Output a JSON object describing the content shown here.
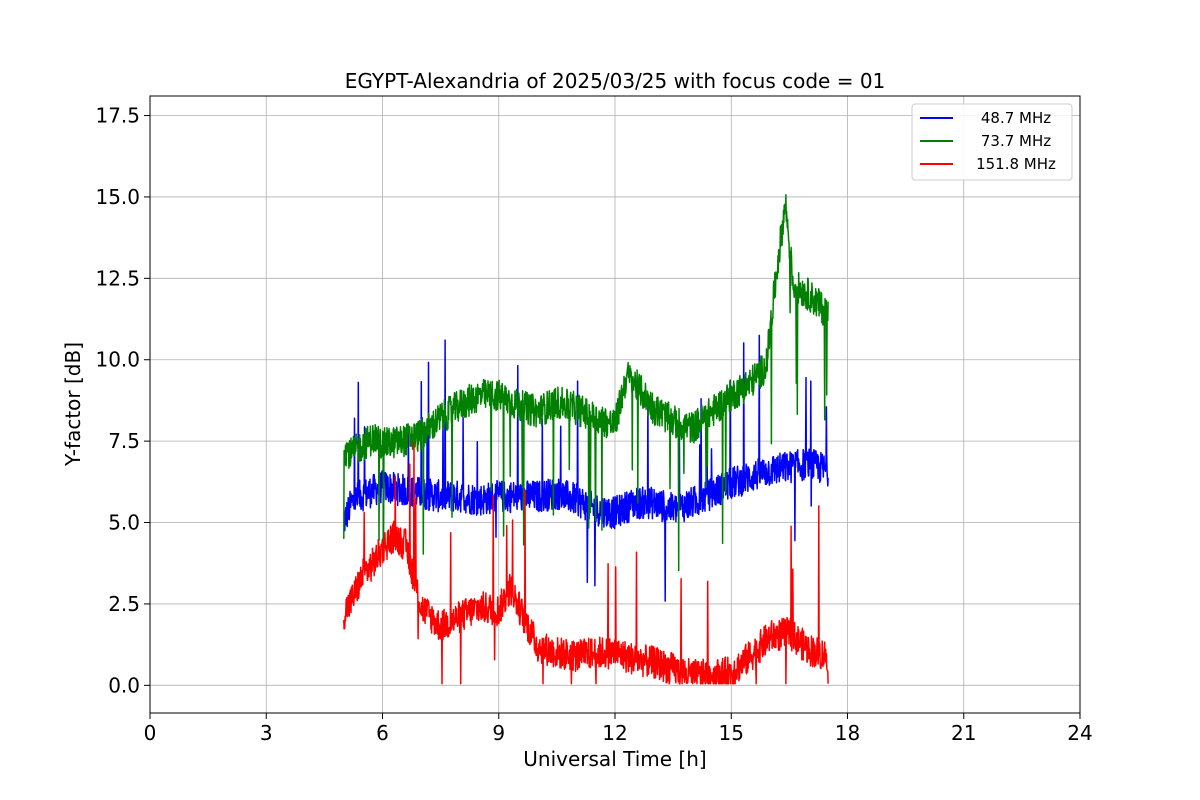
{
  "chart_data": {
    "type": "line",
    "title": "EGYPT-Alexandria of 2025/03/25 with focus code = 01",
    "xlabel": "Universal Time [h]",
    "ylabel": "Y-factor [dB]",
    "xlim": [
      0,
      24
    ],
    "ylim": [
      -0.85,
      18.1
    ],
    "xticks": [
      0,
      3,
      6,
      9,
      12,
      15,
      18,
      21,
      24
    ],
    "xtick_labels": [
      "0",
      "3",
      "6",
      "9",
      "12",
      "15",
      "18",
      "21",
      "24"
    ],
    "yticks": [
      0.0,
      2.5,
      5.0,
      7.5,
      10.0,
      12.5,
      15.0,
      17.5
    ],
    "ytick_labels": [
      "0.0",
      "2.5",
      "5.0",
      "7.5",
      "10.0",
      "12.5",
      "15.0",
      "17.5"
    ],
    "grid": true,
    "legend_position": "top-right",
    "series": [
      {
        "name": " 48.7 MHz",
        "color": "#0000ff",
        "x": [
          5.0,
          5.1,
          5.2,
          5.4,
          5.6,
          5.8,
          6.0,
          6.5,
          7.0,
          7.5,
          8.0,
          8.5,
          9.0,
          9.5,
          10.0,
          10.5,
          11.0,
          11.5,
          12.0,
          12.5,
          13.0,
          13.5,
          14.0,
          14.5,
          15.0,
          15.5,
          16.0,
          16.5,
          17.0,
          17.5
        ],
        "y": [
          5.0,
          5.3,
          5.6,
          5.8,
          5.9,
          6.0,
          6.1,
          6.0,
          5.9,
          5.8,
          5.8,
          5.7,
          5.8,
          5.8,
          5.8,
          5.9,
          5.7,
          5.4,
          5.3,
          5.6,
          5.6,
          5.4,
          5.6,
          5.9,
          6.2,
          6.4,
          6.6,
          6.7,
          6.8,
          6.6
        ],
        "amplitude": 0.5
      },
      {
        "name": " 73.7 MHz",
        "color": "#008000",
        "x": [
          5.0,
          5.2,
          5.5,
          5.8,
          6.0,
          6.5,
          7.0,
          7.5,
          8.0,
          8.5,
          9.0,
          9.5,
          10.0,
          10.5,
          11.0,
          11.5,
          12.0,
          12.3,
          12.5,
          13.0,
          13.5,
          14.0,
          14.5,
          15.0,
          15.5,
          15.9,
          16.2,
          16.4,
          16.6,
          17.0,
          17.5
        ],
        "y": [
          7.3,
          7.1,
          7.4,
          7.6,
          7.4,
          7.5,
          7.7,
          8.2,
          8.6,
          8.9,
          8.9,
          8.6,
          8.4,
          8.7,
          8.5,
          8.2,
          8.0,
          9.5,
          9.3,
          8.5,
          8.1,
          7.9,
          8.4,
          8.9,
          9.3,
          9.8,
          13.0,
          14.8,
          12.3,
          12.0,
          11.4
        ],
        "amplitude": 0.5
      },
      {
        "name": "151.8 MHz",
        "color": "#ff0000",
        "x": [
          5.0,
          5.2,
          5.5,
          5.8,
          6.0,
          6.3,
          6.6,
          7.0,
          7.5,
          8.0,
          8.5,
          9.0,
          9.3,
          9.6,
          10.0,
          10.5,
          11.0,
          11.5,
          12.0,
          12.5,
          13.0,
          13.5,
          14.0,
          14.5,
          15.0,
          15.5,
          16.0,
          16.5,
          17.0,
          17.5
        ],
        "y": [
          2.2,
          2.6,
          3.4,
          3.8,
          4.2,
          4.6,
          4.3,
          2.4,
          1.8,
          2.1,
          2.4,
          2.3,
          3.0,
          2.2,
          1.2,
          1.0,
          0.9,
          1.0,
          1.0,
          0.8,
          0.7,
          0.5,
          0.3,
          0.3,
          0.4,
          0.9,
          1.5,
          1.6,
          1.1,
          0.9
        ],
        "amplitude": 0.5
      }
    ]
  }
}
